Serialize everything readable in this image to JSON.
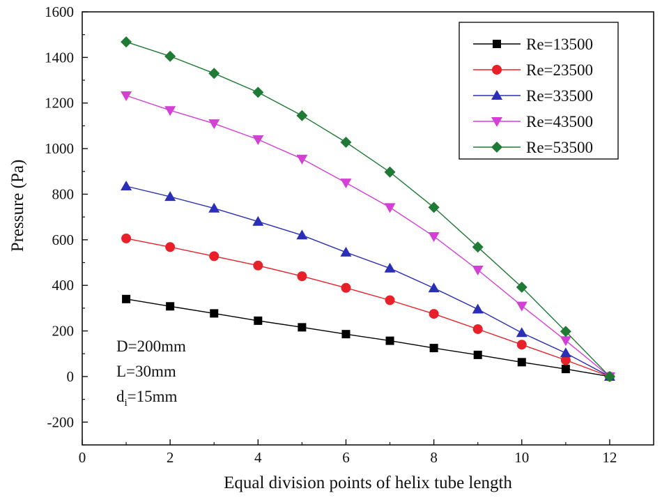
{
  "chart_data": {
    "type": "line",
    "title": "",
    "xlabel": "Equal division points of helix tube length",
    "ylabel": "Pressure (Pa)",
    "xlim": [
      0,
      13
    ],
    "ylim": [
      -300,
      1600
    ],
    "xticks": [
      0,
      2,
      4,
      6,
      8,
      10,
      12
    ],
    "yticks": [
      -200,
      0,
      200,
      400,
      600,
      800,
      1000,
      1200,
      1400,
      1600
    ],
    "grid": false,
    "legend_position": "top-right",
    "x": [
      1,
      2,
      3,
      4,
      5,
      6,
      7,
      8,
      9,
      10,
      11,
      12
    ],
    "series": [
      {
        "name": "Re=13500",
        "marker": "square",
        "color": "#000000",
        "values": [
          340,
          308,
          277,
          245,
          216,
          186,
          157,
          125,
          95,
          63,
          33,
          0
        ]
      },
      {
        "name": "Re=23500",
        "marker": "circle",
        "color": "#e8202a",
        "values": [
          606,
          568,
          528,
          487,
          440,
          389,
          335,
          275,
          208,
          140,
          72,
          0
        ]
      },
      {
        "name": "Re=33500",
        "marker": "triangle-up",
        "color": "#2b2fb8",
        "values": [
          835,
          789,
          738,
          680,
          620,
          545,
          475,
          388,
          295,
          192,
          103,
          0
        ]
      },
      {
        "name": "Re=43500",
        "marker": "triangle-down",
        "color": "#d43fd6",
        "values": [
          1233,
          1168,
          1110,
          1040,
          955,
          850,
          742,
          615,
          468,
          310,
          158,
          0
        ]
      },
      {
        "name": "Re=53500",
        "marker": "diamond",
        "color": "#1e7a34",
        "values": [
          1468,
          1405,
          1330,
          1247,
          1145,
          1028,
          897,
          742,
          568,
          392,
          198,
          0
        ]
      }
    ],
    "annotations": {
      "line1": "D=200mm",
      "line2": "L=30mm",
      "line3_prefix": "d",
      "line3_sub": "i",
      "line3_suffix": "=15mm"
    }
  }
}
